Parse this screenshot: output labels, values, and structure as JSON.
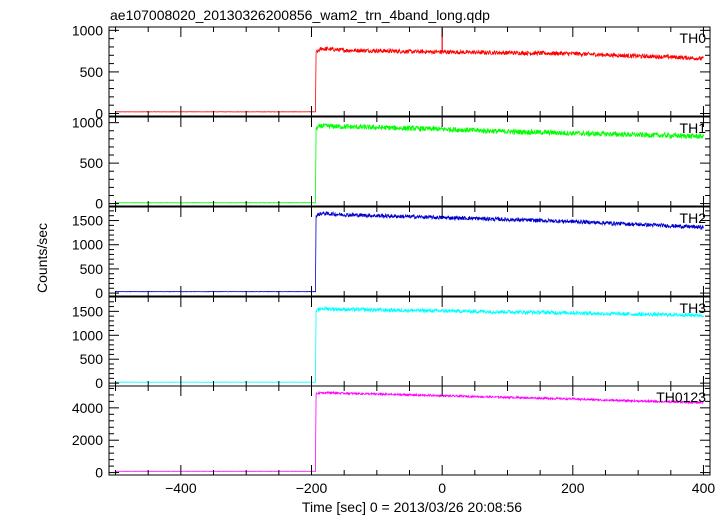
{
  "chart_data": {
    "type": "line",
    "title": "ae107008020_20130326200856_wam2_trn_4band_long.qdp",
    "xlabel": "Time [sec] 0 = 2013/03/26 20:08:56",
    "ylabel": "Counts/sec",
    "xlim": [
      -510,
      410
    ],
    "x_ticks": [
      -400,
      -200,
      0,
      200,
      400
    ],
    "x_tick_labels": [
      "−400",
      "−200",
      "0",
      "200",
      "400"
    ],
    "grid": false,
    "onset_time": -193,
    "panels": [
      {
        "name": "TH0",
        "color": "#ff0000",
        "ylim": [
          -30,
          1040
        ],
        "y_ticks": [
          0,
          500,
          1000
        ],
        "y_tick_labels": [
          "0",
          "500",
          "1000"
        ],
        "x": [
          -500,
          -194,
          -193,
          -185,
          -150,
          -100,
          -50,
          0,
          50,
          100,
          150,
          200,
          250,
          300,
          350,
          400
        ],
        "y": [
          20,
          20,
          730,
          780,
          760,
          755,
          745,
          740,
          735,
          730,
          725,
          720,
          705,
          690,
          680,
          660
        ],
        "noise": 25,
        "spike": {
          "x": 0,
          "y": 1040
        }
      },
      {
        "name": "TH1",
        "color": "#00ff00",
        "ylim": [
          -30,
          1070
        ],
        "y_ticks": [
          0,
          500,
          1000
        ],
        "y_tick_labels": [
          "0",
          "500",
          "1000"
        ],
        "x": [
          -500,
          -194,
          -193,
          -185,
          -150,
          -100,
          -50,
          0,
          50,
          100,
          150,
          200,
          250,
          300,
          350,
          400
        ],
        "y": [
          10,
          10,
          930,
          960,
          950,
          940,
          930,
          920,
          905,
          890,
          880,
          870,
          860,
          850,
          840,
          830
        ],
        "noise": 32
      },
      {
        "name": "TH2",
        "color": "#0000cc",
        "ylim": [
          -60,
          1780
        ],
        "y_ticks": [
          0,
          500,
          1000,
          1500
        ],
        "y_tick_labels": [
          "0",
          "500",
          "1000",
          "1500"
        ],
        "x": [
          -500,
          -194,
          -193,
          -185,
          -150,
          -100,
          -50,
          0,
          50,
          100,
          150,
          200,
          250,
          300,
          350,
          400
        ],
        "y": [
          30,
          30,
          1600,
          1650,
          1620,
          1600,
          1580,
          1560,
          1545,
          1520,
          1500,
          1480,
          1450,
          1420,
          1390,
          1360
        ],
        "noise": 40
      },
      {
        "name": "TH3",
        "color": "#00ffff",
        "ylim": [
          -60,
          1800
        ],
        "y_ticks": [
          0,
          500,
          1000,
          1500
        ],
        "y_tick_labels": [
          "0",
          "500",
          "1000",
          "1500"
        ],
        "x": [
          -500,
          -194,
          -193,
          -185,
          -150,
          -100,
          -50,
          0,
          50,
          100,
          150,
          200,
          250,
          300,
          350,
          400
        ],
        "y": [
          20,
          20,
          1500,
          1560,
          1540,
          1530,
          1520,
          1510,
          1500,
          1490,
          1480,
          1470,
          1450,
          1440,
          1430,
          1420
        ],
        "noise": 40
      },
      {
        "name": "TH0123",
        "color": "#ff00ff",
        "ylim": [
          -150,
          5350
        ],
        "y_ticks": [
          0,
          2000,
          4000
        ],
        "y_tick_labels": [
          "0",
          "2000",
          "4000"
        ],
        "x": [
          -500,
          -194,
          -193,
          -185,
          -150,
          -100,
          -50,
          0,
          50,
          100,
          150,
          200,
          250,
          300,
          350,
          400
        ],
        "y": [
          80,
          80,
          4850,
          4950,
          4900,
          4850,
          4800,
          4750,
          4700,
          4650,
          4600,
          4550,
          4480,
          4420,
          4370,
          4320
        ],
        "noise": 60
      }
    ]
  }
}
